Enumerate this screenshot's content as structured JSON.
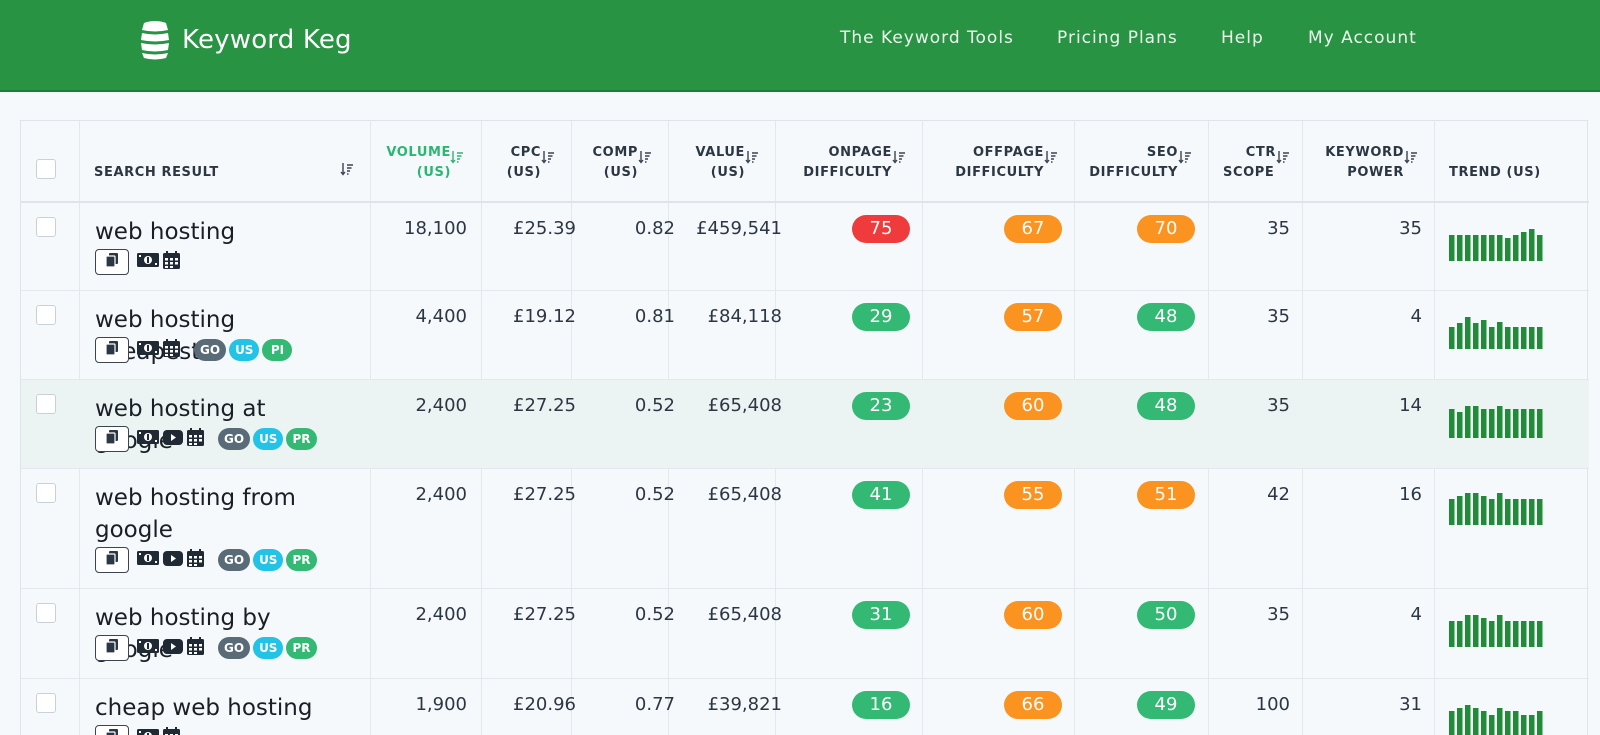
{
  "app": {
    "name": "Keyword Keg",
    "nav": [
      "The Keyword Tools",
      "Pricing Plans",
      "Help",
      "My Account"
    ]
  },
  "colors": {
    "header": "#289443",
    "high": "#ef3b3b",
    "medium": "#fb9320",
    "low": "#33b973",
    "trend": "#228b3a"
  },
  "table": {
    "headers": {
      "search_result": "SEARCH RESULT",
      "volume": [
        "VOLUME",
        "(US)"
      ],
      "cpc": [
        "CPC",
        "(US)"
      ],
      "comp": [
        "COMP",
        "(US)"
      ],
      "value": [
        "VALUE",
        "(US)"
      ],
      "onpage": [
        "ONPAGE",
        "DIFFICULTY"
      ],
      "offpage": [
        "OFFPAGE",
        "DIFFICULTY"
      ],
      "seo": [
        "SEO",
        "DIFFICULTY"
      ],
      "ctr": [
        "CTR",
        "SCOPE"
      ],
      "power": [
        "KEYWORD",
        "POWER"
      ],
      "trend": "TREND (US)"
    },
    "rows": [
      {
        "keyword": "web hosting",
        "volume": "18,100",
        "cpc": "£25.39",
        "comp": "0.82",
        "value": "£459,541",
        "onpage": {
          "value": "75",
          "level": "red"
        },
        "offpage": {
          "value": "67",
          "level": "orange"
        },
        "seo": {
          "value": "70",
          "level": "orange"
        },
        "ctr": "35",
        "power": "35",
        "youtube": false,
        "badges": [],
        "trend": [
          0.8,
          0.8,
          0.8,
          0.8,
          0.8,
          0.8,
          0.8,
          0.72,
          0.8,
          0.9,
          1.0,
          0.8
        ]
      },
      {
        "keyword": "web hosting cheapest",
        "volume": "4,400",
        "cpc": "£19.12",
        "comp": "0.81",
        "value": "£84,118",
        "onpage": {
          "value": "29",
          "level": "green"
        },
        "offpage": {
          "value": "57",
          "level": "orange"
        },
        "seo": {
          "value": "48",
          "level": "green"
        },
        "ctr": "35",
        "power": "4",
        "youtube": false,
        "badges": [
          "GO",
          "US",
          "PI"
        ],
        "trend": [
          0.7,
          0.8,
          1.0,
          0.8,
          0.9,
          0.7,
          0.85,
          0.7,
          0.7,
          0.7,
          0.7,
          0.7
        ]
      },
      {
        "keyword": "web hosting at google",
        "volume": "2,400",
        "cpc": "£27.25",
        "comp": "0.52",
        "value": "£65,408",
        "onpage": {
          "value": "23",
          "level": "green"
        },
        "offpage": {
          "value": "60",
          "level": "orange"
        },
        "seo": {
          "value": "48",
          "level": "green"
        },
        "ctr": "35",
        "power": "14",
        "youtube": true,
        "badges": [
          "GO",
          "US",
          "PR"
        ],
        "trend": [
          0.9,
          0.8,
          1.0,
          1.0,
          0.9,
          0.9,
          1.0,
          0.9,
          0.9,
          0.9,
          0.9,
          0.9
        ]
      },
      {
        "keyword": "web hosting from google",
        "volume": "2,400",
        "cpc": "£27.25",
        "comp": "0.52",
        "value": "£65,408",
        "onpage": {
          "value": "41",
          "level": "green"
        },
        "offpage": {
          "value": "55",
          "level": "orange"
        },
        "seo": {
          "value": "51",
          "level": "orange"
        },
        "ctr": "42",
        "power": "16",
        "youtube": true,
        "badges": [
          "GO",
          "US",
          "PR"
        ],
        "trend": [
          0.8,
          0.9,
          1.0,
          1.0,
          0.9,
          0.8,
          1.0,
          0.8,
          0.8,
          0.8,
          0.8,
          0.8
        ]
      },
      {
        "keyword": "web hosting by google",
        "volume": "2,400",
        "cpc": "£27.25",
        "comp": "0.52",
        "value": "£65,408",
        "onpage": {
          "value": "31",
          "level": "green"
        },
        "offpage": {
          "value": "60",
          "level": "orange"
        },
        "seo": {
          "value": "50",
          "level": "green"
        },
        "ctr": "35",
        "power": "4",
        "youtube": true,
        "badges": [
          "GO",
          "US",
          "PR"
        ],
        "trend": [
          0.8,
          0.8,
          1.0,
          1.0,
          0.9,
          0.8,
          1.0,
          0.8,
          0.8,
          0.8,
          0.8,
          0.8
        ]
      },
      {
        "keyword": "cheap web hosting",
        "volume": "1,900",
        "cpc": "£20.96",
        "comp": "0.77",
        "value": "£39,821",
        "onpage": {
          "value": "16",
          "level": "green"
        },
        "offpage": {
          "value": "66",
          "level": "orange"
        },
        "seo": {
          "value": "49",
          "level": "green"
        },
        "ctr": "100",
        "power": "31",
        "youtube": false,
        "badges": [],
        "trend": [
          0.8,
          0.9,
          1.0,
          0.9,
          0.8,
          0.7,
          0.9,
          0.8,
          0.8,
          0.7,
          0.7,
          0.8
        ]
      }
    ]
  }
}
